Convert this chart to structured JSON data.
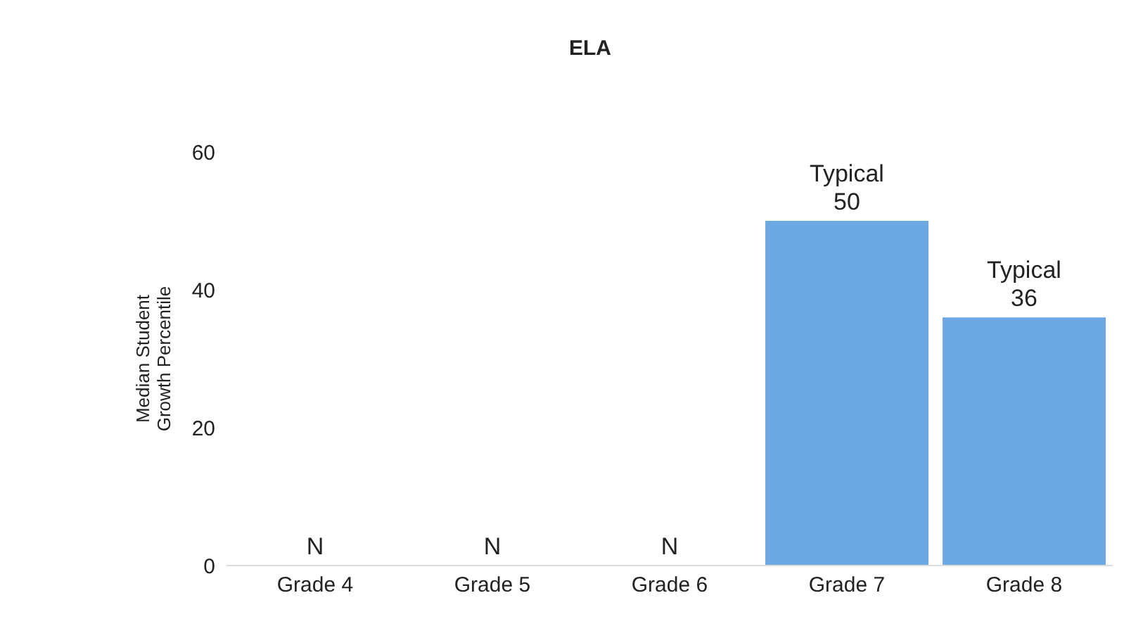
{
  "chart_data": {
    "type": "bar",
    "title": "ELA",
    "ylabel": "Median Student\nGrowth Percentile",
    "categories": [
      "Grade 4",
      "Grade 5",
      "Grade 6",
      "Grade 7",
      "Grade 8"
    ],
    "values": [
      null,
      null,
      null,
      50,
      36
    ],
    "value_labels": [
      "N",
      "N",
      "N",
      "Typical\n50",
      "Typical\n36"
    ],
    "color": "#6ca9e2",
    "ylim": [
      0,
      60
    ],
    "yticks": [
      0,
      20,
      40,
      60
    ],
    "grid": false
  }
}
